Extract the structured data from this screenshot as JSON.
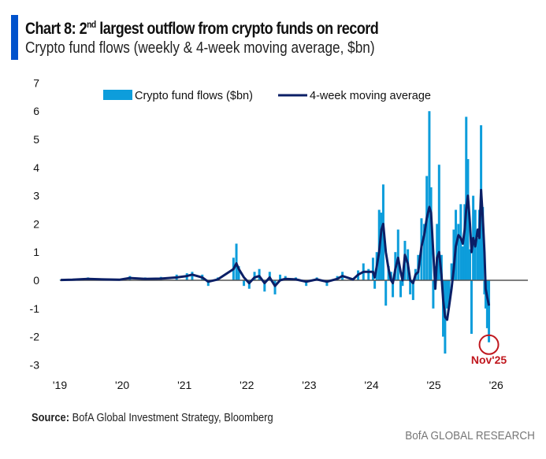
{
  "header": {
    "title_prefix": "Chart 8: 2",
    "title_sup": "nd",
    "title_rest": " largest outflow from crypto funds on record",
    "subtitle": "Crypto fund flows (weekly & 4-week moving average, $bn)"
  },
  "footer": {
    "source_label": "Source:",
    "source_text": " BofA Global Investment Strategy, Bloomberg",
    "brand": "BofA GLOBAL RESEARCH"
  },
  "colors": {
    "flows": "#0d9ddb",
    "ma": "#0b1f66",
    "accent": "#0052cc",
    "annotation": "#c0171e",
    "zero_line": "#555555"
  },
  "chart_data": {
    "type": "bar+line",
    "title": "Chart 8: 2nd largest outflow from crypto funds on record",
    "subtitle": "Crypto fund flows (weekly & 4-week moving average, $bn)",
    "ylim": [
      -3,
      7
    ],
    "yticks": [
      "7",
      "6",
      "5",
      "4",
      "3",
      "2",
      "1",
      "0",
      "-1",
      "-2",
      "-3"
    ],
    "xticks": [
      "'19",
      "'20",
      "'21",
      "'22",
      "'23",
      "'24",
      "'25",
      "'26"
    ],
    "grid": false,
    "legend": {
      "placement": "top",
      "entries": [
        "Crypto fund flows ($bn)",
        "4-week moving average"
      ]
    },
    "annotation": {
      "label": "Nov'25",
      "date": "2025-11-20",
      "value": -2.2
    },
    "series": [
      {
        "name": "Crypto fund flows ($bn)",
        "kind": "bar"
      },
      {
        "name": "4-week moving average",
        "kind": "line"
      }
    ],
    "points": [
      [
        "2019-01-06",
        0.02,
        0.01
      ],
      [
        "2019-03-15",
        0.05,
        0.02
      ],
      [
        "2019-06-15",
        0.1,
        0.05
      ],
      [
        "2019-09-15",
        0.05,
        0.03
      ],
      [
        "2019-12-15",
        0.02,
        0.02
      ],
      [
        "2020-02-15",
        0.15,
        0.08
      ],
      [
        "2020-05-15",
        0.1,
        0.05
      ],
      [
        "2020-08-15",
        0.12,
        0.06
      ],
      [
        "2020-11-15",
        0.2,
        0.1
      ],
      [
        "2021-01-15",
        0.25,
        0.15
      ],
      [
        "2021-02-15",
        0.3,
        0.2
      ],
      [
        "2021-04-15",
        0.2,
        0.1
      ],
      [
        "2021-05-20",
        -0.2,
        -0.05
      ],
      [
        "2021-07-15",
        0.1,
        0.03
      ],
      [
        "2021-10-15",
        0.8,
        0.4
      ],
      [
        "2021-11-01",
        1.3,
        0.6
      ],
      [
        "2021-11-15",
        0.5,
        0.4
      ],
      [
        "2021-12-15",
        -0.2,
        0.1
      ],
      [
        "2022-01-15",
        -0.3,
        -0.1
      ],
      [
        "2022-02-15",
        0.3,
        0.1
      ],
      [
        "2022-03-15",
        0.4,
        0.15
      ],
      [
        "2022-04-15",
        -0.4,
        -0.1
      ],
      [
        "2022-05-15",
        0.3,
        0.1
      ],
      [
        "2022-06-15",
        -0.5,
        -0.2
      ],
      [
        "2022-07-15",
        0.2,
        0.0
      ],
      [
        "2022-08-15",
        0.15,
        0.05
      ],
      [
        "2022-10-15",
        0.1,
        0.03
      ],
      [
        "2022-12-15",
        -0.2,
        -0.05
      ],
      [
        "2023-02-15",
        0.1,
        0.03
      ],
      [
        "2023-04-15",
        -0.2,
        -0.05
      ],
      [
        "2023-06-15",
        0.15,
        0.05
      ],
      [
        "2023-07-15",
        0.3,
        0.15
      ],
      [
        "2023-09-15",
        0.05,
        0.03
      ],
      [
        "2023-10-15",
        0.35,
        0.2
      ],
      [
        "2023-11-15",
        0.6,
        0.3
      ],
      [
        "2023-12-15",
        0.4,
        0.3
      ],
      [
        "2024-01-10",
        0.8,
        0.3
      ],
      [
        "2024-01-20",
        -0.3,
        0.1
      ],
      [
        "2024-02-01",
        1.0,
        0.5
      ],
      [
        "2024-02-15",
        2.5,
        1.0
      ],
      [
        "2024-02-28",
        2.4,
        1.8
      ],
      [
        "2024-03-10",
        3.4,
        2.0
      ],
      [
        "2024-03-25",
        -0.9,
        1.0
      ],
      [
        "2024-04-10",
        0.5,
        0.4
      ],
      [
        "2024-04-25",
        0.3,
        0.0
      ],
      [
        "2024-05-05",
        -0.6,
        -0.1
      ],
      [
        "2024-05-20",
        1.0,
        0.4
      ],
      [
        "2024-06-05",
        1.8,
        0.8
      ],
      [
        "2024-06-20",
        -0.6,
        0.3
      ],
      [
        "2024-07-01",
        -0.2,
        0.0
      ],
      [
        "2024-07-15",
        1.4,
        0.9
      ],
      [
        "2024-08-01",
        1.1,
        0.6
      ],
      [
        "2024-08-15",
        -0.5,
        0.0
      ],
      [
        "2024-09-01",
        -0.7,
        -0.1
      ],
      [
        "2024-09-15",
        0.4,
        0.2
      ],
      [
        "2024-10-01",
        0.9,
        0.3
      ],
      [
        "2024-10-20",
        2.2,
        1.2
      ],
      [
        "2024-11-05",
        2.0,
        1.6
      ],
      [
        "2024-11-20",
        3.7,
        2.2
      ],
      [
        "2024-12-05",
        6.0,
        2.6
      ],
      [
        "2024-12-15",
        3.3,
        2.4
      ],
      [
        "2024-12-28",
        -1.0,
        1.0
      ],
      [
        "2025-01-10",
        0.5,
        -0.3
      ],
      [
        "2025-01-20",
        2.0,
        0.8
      ],
      [
        "2025-02-01",
        4.1,
        1.0
      ],
      [
        "2025-02-15",
        0.9,
        0.2
      ],
      [
        "2025-02-25",
        -2.0,
        -0.7
      ],
      [
        "2025-03-08",
        -2.6,
        -1.3
      ],
      [
        "2025-03-20",
        -1.0,
        -1.4
      ],
      [
        "2025-04-01",
        -0.8,
        -0.9
      ],
      [
        "2025-04-15",
        0.6,
        -0.3
      ],
      [
        "2025-04-28",
        1.8,
        0.4
      ],
      [
        "2025-05-10",
        2.5,
        1.2
      ],
      [
        "2025-05-25",
        2.0,
        1.6
      ],
      [
        "2025-06-08",
        2.7,
        1.5
      ],
      [
        "2025-06-20",
        1.2,
        1.3
      ],
      [
        "2025-07-01",
        2.7,
        1.8
      ],
      [
        "2025-07-10",
        5.8,
        2.5
      ],
      [
        "2025-07-20",
        4.3,
        3.0
      ],
      [
        "2025-08-01",
        1.1,
        2.0
      ],
      [
        "2025-08-10",
        -1.9,
        1.0
      ],
      [
        "2025-08-20",
        3.0,
        1.5
      ],
      [
        "2025-09-01",
        2.5,
        1.2
      ],
      [
        "2025-09-15",
        1.5,
        1.8
      ],
      [
        "2025-09-25",
        2.5,
        1.5
      ],
      [
        "2025-10-05",
        5.5,
        3.2
      ],
      [
        "2025-10-15",
        2.6,
        2.2
      ],
      [
        "2025-10-25",
        -0.5,
        1.0
      ],
      [
        "2025-11-01",
        -1.0,
        -0.3
      ],
      [
        "2025-11-10",
        -1.7,
        -0.6
      ],
      [
        "2025-11-20",
        -2.2,
        -0.9
      ]
    ]
  }
}
